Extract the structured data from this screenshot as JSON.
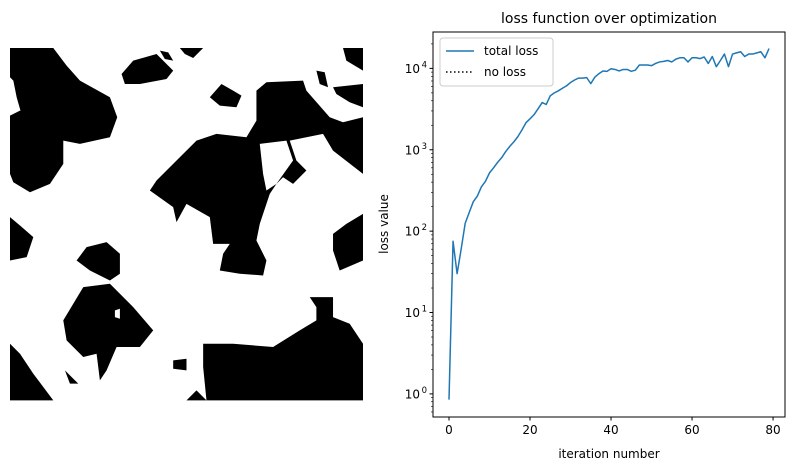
{
  "image_panel": {
    "colors": {
      "phase_solid": "#000000",
      "phase_pore": "#ffffff"
    }
  },
  "chart_data": {
    "type": "line",
    "title": "loss function over optimization",
    "xlabel": "iteration number",
    "ylabel": "loss value",
    "yscale": "log",
    "xlim": [
      -3.95,
      82.95
    ],
    "ylim": [
      0.52,
      28000
    ],
    "xticks": [
      0,
      20,
      40,
      60,
      80
    ],
    "xtick_labels": [
      "0",
      "20",
      "40",
      "60",
      "80"
    ],
    "yticks": [
      1,
      10,
      100,
      1000,
      10000
    ],
    "ytick_labels": [
      {
        "base": "10",
        "exp": "0"
      },
      {
        "base": "10",
        "exp": "1"
      },
      {
        "base": "10",
        "exp": "2"
      },
      {
        "base": "10",
        "exp": "3"
      },
      {
        "base": "10",
        "exp": "4"
      }
    ],
    "grid": false,
    "legend_placement": "upper-left",
    "series": [
      {
        "name": "total loss",
        "color": "#1f77b4",
        "style": "solid",
        "x": [
          0,
          1,
          2,
          3,
          4,
          5,
          6,
          7,
          8,
          9,
          10,
          11,
          12,
          13,
          14,
          15,
          16,
          17,
          18,
          19,
          20,
          21,
          22,
          23,
          24,
          25,
          26,
          27,
          28,
          29,
          30,
          31,
          32,
          33,
          34,
          35,
          36,
          37,
          38,
          39,
          40,
          41,
          42,
          43,
          44,
          45,
          46,
          47,
          48,
          49,
          50,
          51,
          52,
          53,
          54,
          55,
          56,
          57,
          58,
          59,
          60,
          61,
          62,
          63,
          64,
          65,
          66,
          67,
          68,
          69,
          70,
          71,
          72,
          73,
          74,
          75,
          76,
          77,
          78,
          79
        ],
        "values": [
          0.85,
          75,
          30,
          60,
          125,
          170,
          230,
          270,
          350,
          410,
          520,
          600,
          700,
          800,
          950,
          1100,
          1250,
          1450,
          1750,
          2150,
          2400,
          2700,
          3200,
          3800,
          3600,
          4600,
          5000,
          5300,
          5700,
          6100,
          6700,
          7200,
          7600,
          7600,
          7700,
          6500,
          7800,
          8600,
          9300,
          9200,
          9900,
          9700,
          9300,
          9700,
          9700,
          9200,
          9500,
          11000,
          11000,
          11000,
          10800,
          11500,
          12000,
          12200,
          12500,
          12000,
          13000,
          13500,
          13500,
          12000,
          13500,
          13500,
          13200,
          13800,
          11500,
          14000,
          10500,
          12500,
          15000,
          10500,
          15000,
          15500,
          16000,
          14000,
          15000,
          15000,
          15500,
          16000,
          13500,
          17500
        ]
      },
      {
        "name": "no loss",
        "color": "#000000",
        "style": "dotted",
        "x": [],
        "values": []
      }
    ]
  }
}
